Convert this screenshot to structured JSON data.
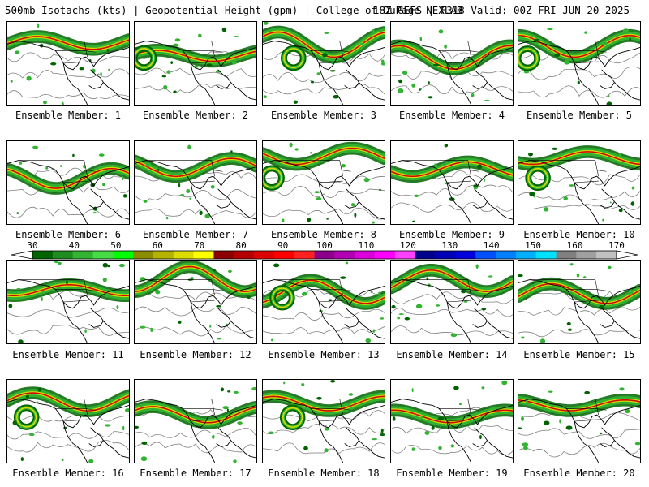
{
  "header": {
    "left": "500mb Isotachs (kts) | Geopotential Height (gpm) | College of DuPage NEXLAB",
    "right": "18Z GEFS | F318 Valid: 00Z FRI JUN 20 2025"
  },
  "members": [
    "Ensemble Member: 1",
    "Ensemble Member: 2",
    "Ensemble Member: 3",
    "Ensemble Member: 4",
    "Ensemble Member: 5",
    "Ensemble Member: 6",
    "Ensemble Member: 7",
    "Ensemble Member: 8",
    "Ensemble Member: 9",
    "Ensemble Member: 10",
    "Ensemble Member: 11",
    "Ensemble Member: 12",
    "Ensemble Member: 13",
    "Ensemble Member: 14",
    "Ensemble Member: 15",
    "Ensemble Member: 16",
    "Ensemble Member: 17",
    "Ensemble Member: 18",
    "Ensemble Member: 19",
    "Ensemble Member: 20"
  ],
  "colorbar": {
    "labels": [
      "30",
      "40",
      "50",
      "60",
      "70",
      "80",
      "90",
      "100",
      "110",
      "120",
      "130",
      "140",
      "150",
      "160",
      "170"
    ],
    "colors": [
      "#006400",
      "#1e8c1e",
      "#32b432",
      "#46dc46",
      "#00ff00",
      "#8c8c00",
      "#b4b400",
      "#dcdc00",
      "#ffff00",
      "#8c0000",
      "#b40000",
      "#dc0000",
      "#ff0000",
      "#ff2020",
      "#8c008c",
      "#b400b4",
      "#dc00dc",
      "#ff00ff",
      "#ff40ff",
      "#00008c",
      "#0000b4",
      "#0000dc",
      "#0050ff",
      "#0080ff",
      "#00b0ff",
      "#00e0ff",
      "#808080",
      "#a0a0a0",
      "#c0c0c0"
    ]
  },
  "colors": {
    "jet_dark": "#006400",
    "jet_mid": "#32b432",
    "jet_yellow": "#dcdc00",
    "jet_red": "#cc0000",
    "height_line": "#808080"
  }
}
